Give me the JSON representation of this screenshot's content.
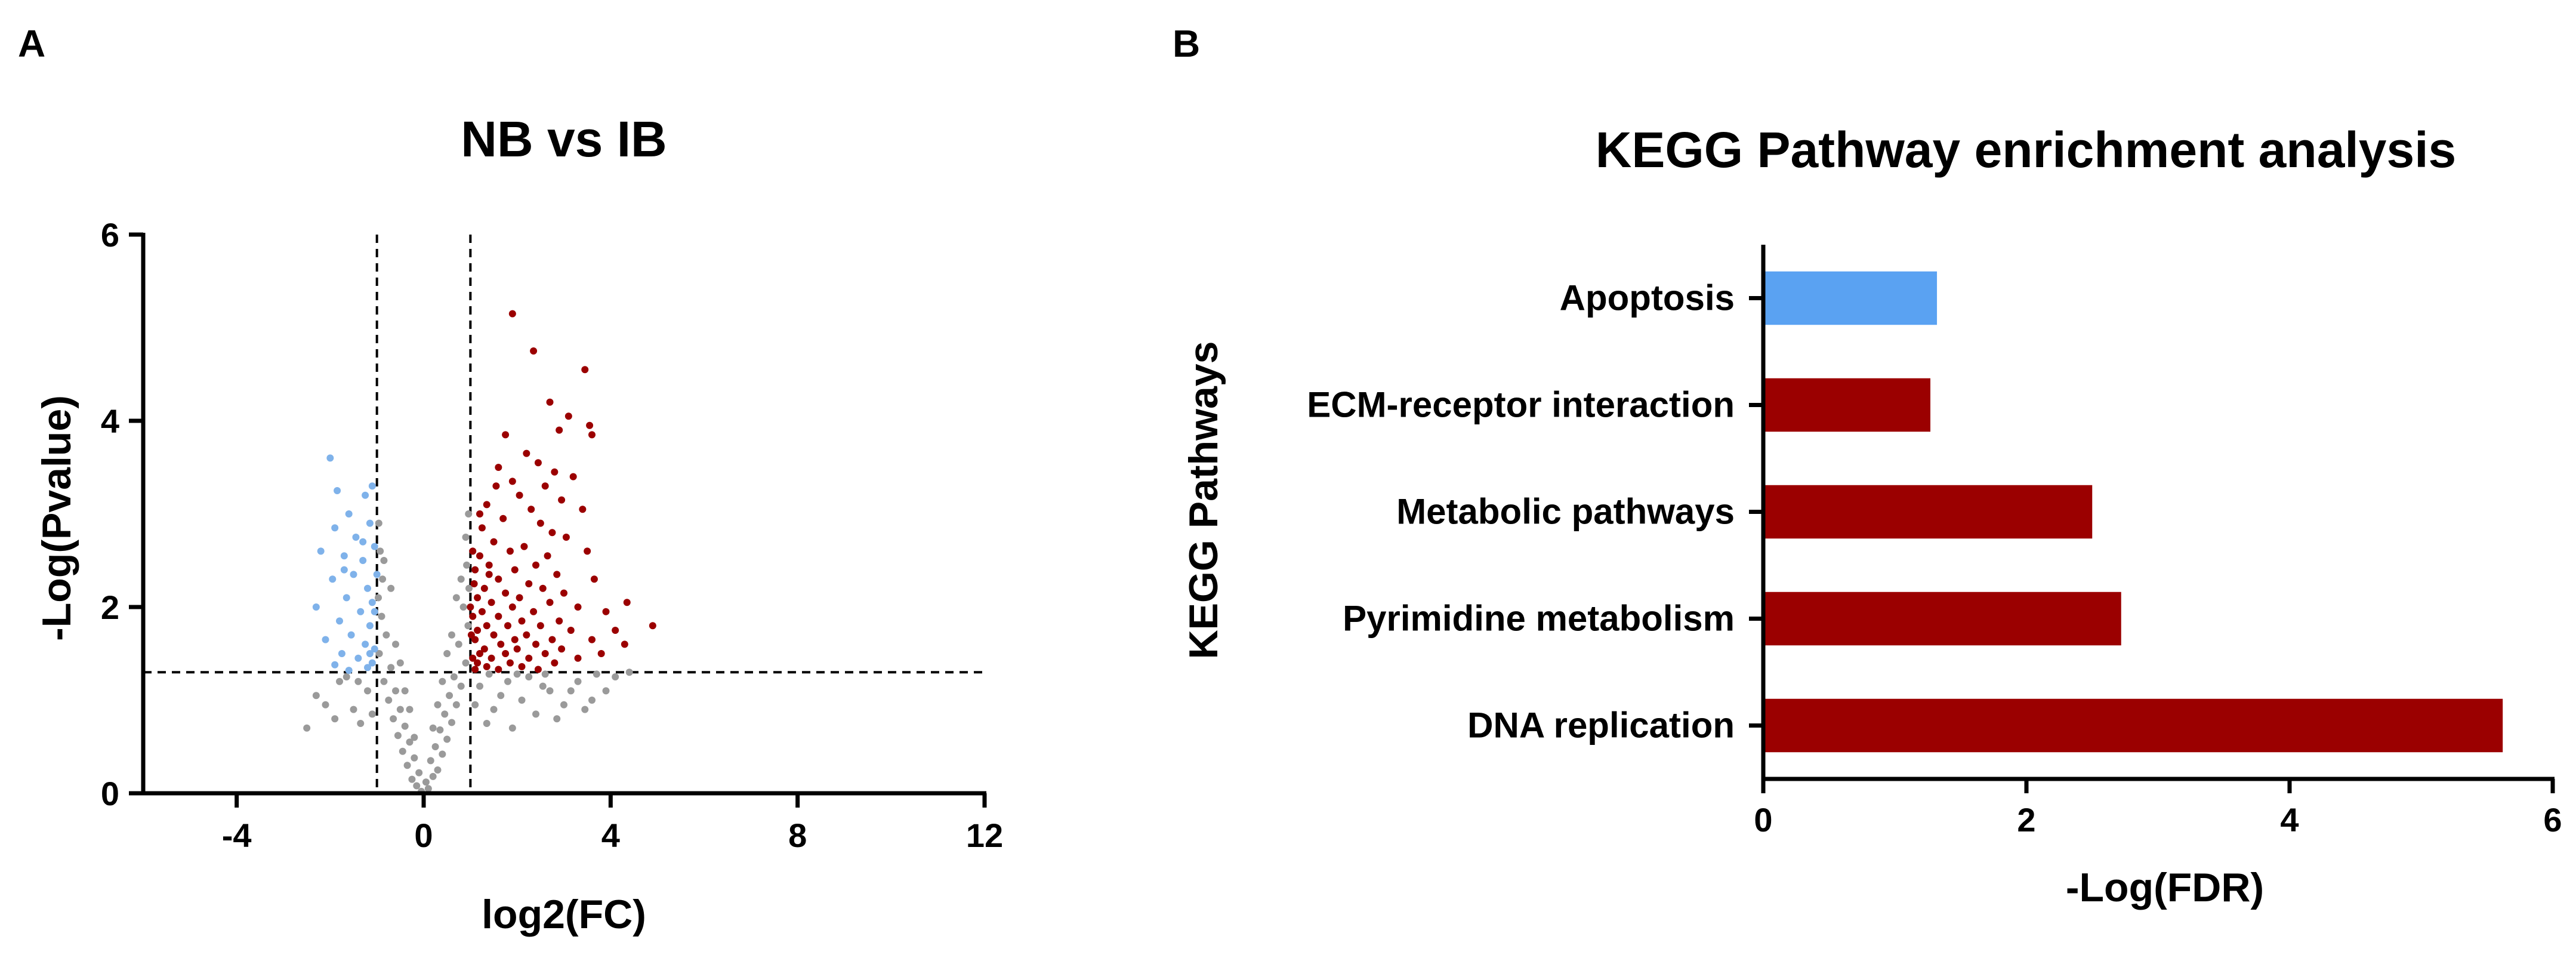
{
  "panels": {
    "a_label": "A",
    "b_label": "B"
  },
  "chart_data": [
    {
      "type": "scatter",
      "title": "NB vs IB",
      "xlabel": "log2(FC)",
      "ylabel": "-Log(Pvalue)",
      "xlim": [
        -6,
        12
      ],
      "ylim": [
        0,
        6
      ],
      "xticks": [
        -4,
        0,
        4,
        8,
        12
      ],
      "yticks": [
        0,
        2,
        4,
        6
      ],
      "grid": false,
      "thresholds": {
        "log2fc": [
          -1,
          1
        ],
        "neg_log_p": 1.3
      },
      "colors": {
        "up": "#9b0000",
        "down": "#7fb2ea",
        "not_significant": "#9a9a9a"
      },
      "series": [
        {
          "group": "up",
          "points": [
            [
              1.9,
              5.15
            ],
            [
              2.35,
              4.75
            ],
            [
              3.45,
              4.55
            ],
            [
              2.7,
              4.2
            ],
            [
              3.1,
              4.05
            ],
            [
              3.55,
              3.95
            ],
            [
              2.9,
              3.9
            ],
            [
              1.75,
              3.85
            ],
            [
              3.6,
              3.85
            ],
            [
              2.2,
              3.65
            ],
            [
              2.45,
              3.55
            ],
            [
              1.6,
              3.5
            ],
            [
              2.8,
              3.45
            ],
            [
              3.2,
              3.4
            ],
            [
              1.9,
              3.35
            ],
            [
              2.6,
              3.3
            ],
            [
              2.05,
              3.2
            ],
            [
              2.95,
              3.15
            ],
            [
              3.4,
              3.05
            ],
            [
              1.35,
              3.1
            ],
            [
              2.3,
              3.05
            ],
            [
              1.7,
              2.95
            ],
            [
              2.5,
              2.9
            ],
            [
              1.25,
              2.85
            ],
            [
              2.75,
              2.8
            ],
            [
              3.05,
              2.75
            ],
            [
              1.5,
              2.7
            ],
            [
              2.15,
              2.65
            ],
            [
              1.85,
              2.6
            ],
            [
              2.65,
              2.55
            ],
            [
              1.2,
              2.55
            ],
            [
              3.5,
              2.6
            ],
            [
              1.4,
              2.45
            ],
            [
              2.4,
              2.45
            ],
            [
              1.95,
              2.4
            ],
            [
              2.85,
              2.35
            ],
            [
              1.1,
              2.4
            ],
            [
              3.65,
              2.3
            ],
            [
              1.6,
              2.3
            ],
            [
              2.25,
              2.25
            ],
            [
              1.3,
              2.2
            ],
            [
              2.55,
              2.2
            ],
            [
              1.75,
              2.15
            ],
            [
              3.0,
              2.15
            ],
            [
              1.15,
              2.1
            ],
            [
              2.05,
              2.1
            ],
            [
              1.45,
              2.05
            ],
            [
              2.7,
              2.05
            ],
            [
              1.9,
              2.0
            ],
            [
              3.3,
              2.0
            ],
            [
              1.25,
              1.95
            ],
            [
              2.35,
              1.95
            ],
            [
              1.6,
              1.9
            ],
            [
              1.05,
              1.9
            ],
            [
              2.1,
              1.85
            ],
            [
              2.9,
              1.85
            ],
            [
              3.9,
              1.95
            ],
            [
              1.35,
              1.8
            ],
            [
              1.8,
              1.8
            ],
            [
              2.5,
              1.8
            ],
            [
              4.35,
              2.05
            ],
            [
              1.15,
              1.75
            ],
            [
              2.2,
              1.7
            ],
            [
              3.15,
              1.75
            ],
            [
              1.5,
              1.7
            ],
            [
              1.95,
              1.65
            ],
            [
              2.75,
              1.65
            ],
            [
              4.1,
              1.75
            ],
            [
              1.1,
              1.65
            ],
            [
              1.65,
              1.6
            ],
            [
              2.4,
              1.6
            ],
            [
              3.6,
              1.65
            ],
            [
              1.3,
              1.55
            ],
            [
              2.0,
              1.55
            ],
            [
              2.95,
              1.55
            ],
            [
              4.9,
              1.8
            ],
            [
              1.2,
              1.5
            ],
            [
              1.75,
              1.5
            ],
            [
              2.6,
              1.5
            ],
            [
              4.3,
              1.6
            ],
            [
              1.05,
              1.45
            ],
            [
              1.45,
              1.45
            ],
            [
              2.25,
              1.45
            ],
            [
              3.3,
              1.45
            ],
            [
              1.15,
              1.4
            ],
            [
              1.85,
              1.4
            ],
            [
              2.8,
              1.4
            ],
            [
              3.8,
              1.5
            ],
            [
              1.35,
              1.36
            ],
            [
              2.1,
              1.36
            ],
            [
              1.1,
              1.33
            ],
            [
              1.6,
              1.33
            ],
            [
              2.45,
              1.33
            ],
            [
              1.05,
              2.6
            ],
            [
              1.2,
              3.0
            ],
            [
              1.55,
              3.3
            ],
            [
              1.0,
              2.0
            ],
            [
              1.02,
              1.7
            ],
            [
              1.08,
              2.25
            ],
            [
              1.4,
              2.35
            ]
          ]
        },
        {
          "group": "down",
          "points": [
            [
              -2.0,
              3.6
            ],
            [
              -1.85,
              3.25
            ],
            [
              -1.25,
              3.2
            ],
            [
              -1.6,
              3.0
            ],
            [
              -1.1,
              3.3
            ],
            [
              -1.9,
              2.85
            ],
            [
              -1.45,
              2.75
            ],
            [
              -1.15,
              2.9
            ],
            [
              -2.2,
              2.6
            ],
            [
              -1.7,
              2.55
            ],
            [
              -1.3,
              2.5
            ],
            [
              -1.05,
              2.65
            ],
            [
              -1.5,
              2.35
            ],
            [
              -1.95,
              2.3
            ],
            [
              -1.2,
              2.2
            ],
            [
              -1.65,
              2.1
            ],
            [
              -1.1,
              2.05
            ],
            [
              -2.3,
              2.0
            ],
            [
              -1.35,
              1.95
            ],
            [
              -1.8,
              1.85
            ],
            [
              -1.15,
              1.8
            ],
            [
              -1.55,
              1.7
            ],
            [
              -2.1,
              1.65
            ],
            [
              -1.25,
              1.6
            ],
            [
              -1.05,
              1.55
            ],
            [
              -1.75,
              1.5
            ],
            [
              -1.4,
              1.45
            ],
            [
              -1.1,
              1.4
            ],
            [
              -1.9,
              1.38
            ],
            [
              -1.2,
              1.35
            ],
            [
              -1.6,
              1.32
            ],
            [
              -1.3,
              2.7
            ],
            [
              -1.0,
              2.35
            ],
            [
              -1.05,
              1.95
            ],
            [
              -1.7,
              2.4
            ],
            [
              -1.15,
              1.5
            ]
          ]
        },
        {
          "group": "not_significant",
          "points": [
            [
              -0.05,
              0.02
            ],
            [
              0.1,
              0.05
            ],
            [
              -0.15,
              0.08
            ],
            [
              0.05,
              0.12
            ],
            [
              -0.25,
              0.15
            ],
            [
              0.2,
              0.18
            ],
            [
              -0.1,
              0.22
            ],
            [
              0.3,
              0.25
            ],
            [
              -0.35,
              0.3
            ],
            [
              0.15,
              0.35
            ],
            [
              -0.2,
              0.38
            ],
            [
              0.4,
              0.42
            ],
            [
              -0.45,
              0.45
            ],
            [
              0.25,
              0.5
            ],
            [
              -0.3,
              0.55
            ],
            [
              0.5,
              0.58
            ],
            [
              -0.55,
              0.62
            ],
            [
              0.35,
              0.68
            ],
            [
              -0.4,
              0.72
            ],
            [
              0.6,
              0.76
            ],
            [
              -0.65,
              0.8
            ],
            [
              0.45,
              0.85
            ],
            [
              -0.5,
              0.9
            ],
            [
              0.7,
              0.95
            ],
            [
              -0.75,
              1.0
            ],
            [
              0.55,
              1.05
            ],
            [
              -0.6,
              1.1
            ],
            [
              0.8,
              1.15
            ],
            [
              -0.85,
              1.2
            ],
            [
              0.65,
              1.25
            ],
            [
              -0.7,
              1.35
            ],
            [
              0.9,
              1.4
            ],
            [
              -0.95,
              1.5
            ],
            [
              0.75,
              1.6
            ],
            [
              -0.8,
              1.7
            ],
            [
              0.95,
              1.8
            ],
            [
              -0.9,
              1.9
            ],
            [
              0.85,
              2.0
            ],
            [
              -0.97,
              2.1
            ],
            [
              0.97,
              2.2
            ],
            [
              -0.88,
              2.3
            ],
            [
              0.92,
              2.45
            ],
            [
              -0.93,
              2.6
            ],
            [
              0.9,
              2.75
            ],
            [
              -0.96,
              2.9
            ],
            [
              0.96,
              3.0
            ],
            [
              -0.85,
              2.5
            ],
            [
              0.8,
              2.3
            ],
            [
              -0.6,
              1.6
            ],
            [
              0.6,
              1.7
            ],
            [
              -0.4,
              1.1
            ],
            [
              0.4,
              1.2
            ],
            [
              -0.2,
              0.6
            ],
            [
              0.2,
              0.7
            ],
            [
              -0.7,
              2.2
            ],
            [
              0.7,
              2.1
            ],
            [
              -0.5,
              1.4
            ],
            [
              0.5,
              1.5
            ],
            [
              -0.3,
              0.9
            ],
            [
              0.3,
              0.95
            ],
            [
              -1.2,
              1.1
            ],
            [
              -1.5,
              0.9
            ],
            [
              -1.8,
              1.2
            ],
            [
              -2.1,
              0.95
            ],
            [
              -1.35,
              0.75
            ],
            [
              -1.65,
              1.25
            ],
            [
              -2.5,
              0.7
            ],
            [
              -1.1,
              0.85
            ],
            [
              -1.4,
              1.2
            ],
            [
              -1.9,
              0.8
            ],
            [
              -2.3,
              1.05
            ],
            [
              1.2,
              1.15
            ],
            [
              1.5,
              0.9
            ],
            [
              1.8,
              1.2
            ],
            [
              2.1,
              1.0
            ],
            [
              2.4,
              0.85
            ],
            [
              2.7,
              1.1
            ],
            [
              3.0,
              0.95
            ],
            [
              3.3,
              1.2
            ],
            [
              3.6,
              1.0
            ],
            [
              1.35,
              0.75
            ],
            [
              1.65,
              1.05
            ],
            [
              2.25,
              1.25
            ],
            [
              2.85,
              0.8
            ],
            [
              3.45,
              0.9
            ],
            [
              4.1,
              1.25
            ],
            [
              1.1,
              0.95
            ],
            [
              1.9,
              0.7
            ],
            [
              2.55,
              1.15
            ],
            [
              3.15,
              1.1
            ],
            [
              3.9,
              1.1
            ],
            [
              1.4,
              1.28
            ],
            [
              2.0,
              1.28
            ],
            [
              2.6,
              1.28
            ],
            [
              3.7,
              1.28
            ],
            [
              4.4,
              1.3
            ]
          ]
        }
      ]
    },
    {
      "type": "bar",
      "orientation": "horizontal",
      "title": "KEGG Pathway enrichment analysis",
      "xlabel": "-Log(FDR)",
      "ylabel": "KEGG Pathways",
      "xlim": [
        0,
        6
      ],
      "xticks": [
        0,
        2,
        4,
        6
      ],
      "grid": false,
      "categories": [
        "Apoptosis",
        "ECM-receptor interaction",
        "Metabolic pathways",
        "Pyrimidine metabolism",
        "DNA replication"
      ],
      "values": [
        1.32,
        1.27,
        2.5,
        2.72,
        5.62
      ],
      "colors": [
        "#5aa2f2",
        "#9b0000",
        "#9b0000",
        "#9b0000",
        "#9b0000"
      ]
    }
  ]
}
